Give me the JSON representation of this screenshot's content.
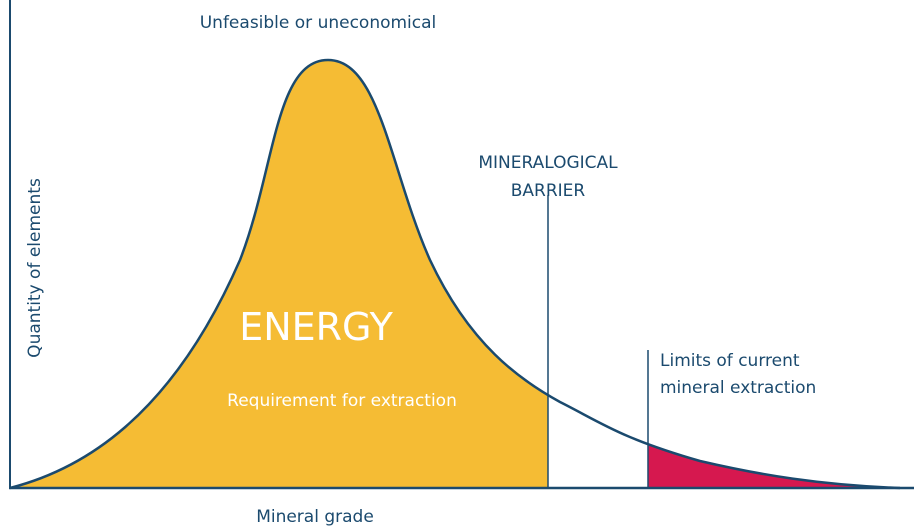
{
  "header": {
    "title": "Unfeasible or uneconomical"
  },
  "axes": {
    "y_label": "Quantity of elements",
    "x_label": "Mineral grade"
  },
  "regions": {
    "energy": {
      "label": "ENERGY",
      "sublabel": "Requirement for extraction"
    },
    "barrier": {
      "lines": [
        "MINERALOGICAL",
        "BARRIER"
      ]
    },
    "limits": {
      "lines": [
        "Limits of current",
        "mineral extraction"
      ]
    }
  }
}
